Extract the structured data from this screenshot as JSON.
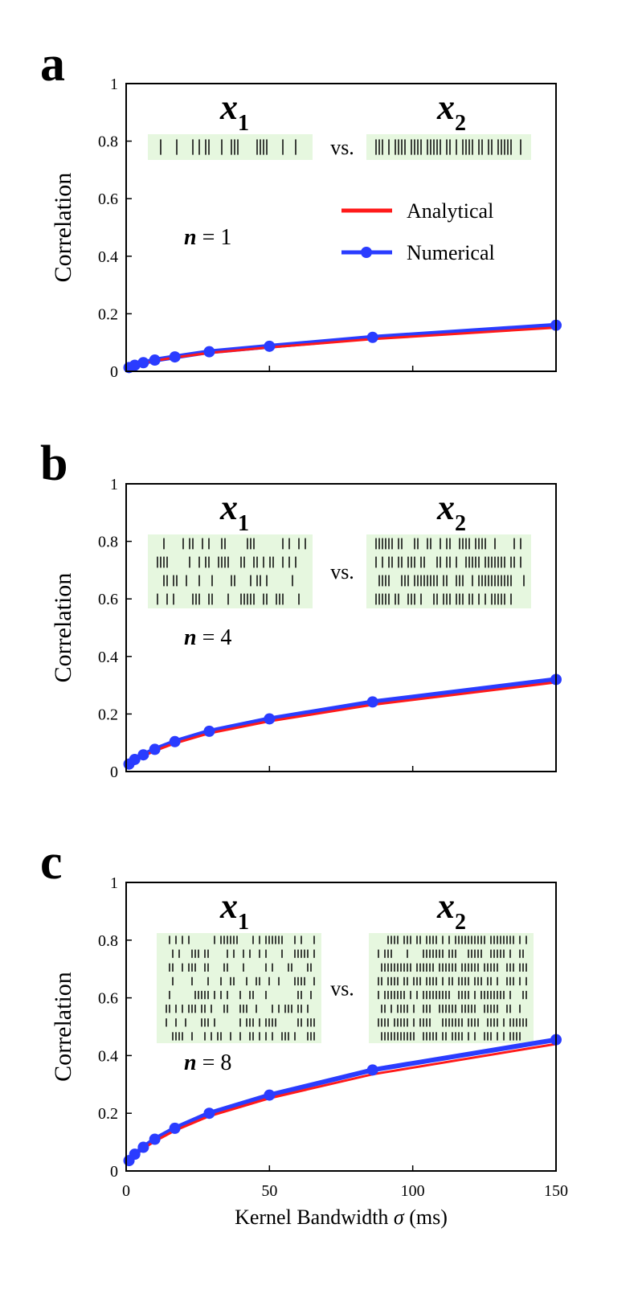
{
  "colors": {
    "analytical": "#ff1a1a",
    "numerical": "#2a3cff",
    "raster_bg": "#e6f7df",
    "axis": "#000000"
  },
  "legend": {
    "analytical_label": "Analytical",
    "numerical_label": "Numerical"
  },
  "chart_data": [
    {
      "panel": "a",
      "type": "line",
      "ylabel": "Correlation",
      "xlabel": "",
      "xlim": [
        0,
        150
      ],
      "ylim": [
        0,
        1
      ],
      "xticks": [
        0,
        50,
        100,
        150
      ],
      "yticks": [
        0,
        0.2,
        0.4,
        0.6,
        0.8,
        1
      ],
      "xtick_labels": [
        "",
        "",
        "",
        ""
      ],
      "ytick_labels": [
        "0",
        "0.2",
        "0.4",
        "0.6",
        "0.8",
        "1"
      ],
      "x1_label": "x",
      "x1_sub": "1",
      "x2_label": "x",
      "x2_sub": "2",
      "vs_label": "vs.",
      "n_var": "n",
      "n_text": " = 1",
      "n_rows": 1,
      "show_legend": true,
      "series": [
        {
          "name": "Analytical",
          "x": [
            1,
            3,
            6,
            10,
            17,
            29,
            50,
            86,
            150
          ],
          "y": [
            0.012,
            0.02,
            0.028,
            0.037,
            0.048,
            0.064,
            0.083,
            0.112,
            0.152
          ]
        },
        {
          "name": "Numerical",
          "x": [
            1,
            3,
            6,
            10,
            17,
            29,
            50,
            86,
            150
          ],
          "y": [
            0.013,
            0.021,
            0.03,
            0.039,
            0.05,
            0.068,
            0.087,
            0.118,
            0.16
          ]
        }
      ]
    },
    {
      "panel": "b",
      "type": "line",
      "ylabel": "Correlation",
      "xlabel": "",
      "xlim": [
        0,
        150
      ],
      "ylim": [
        0,
        1
      ],
      "xticks": [
        0,
        50,
        100,
        150
      ],
      "yticks": [
        0,
        0.2,
        0.4,
        0.6,
        0.8,
        1
      ],
      "xtick_labels": [
        "",
        "",
        "",
        ""
      ],
      "ytick_labels": [
        "0",
        "0.2",
        "0.4",
        "0.6",
        "0.8",
        "1"
      ],
      "x1_label": "x",
      "x1_sub": "1",
      "x2_label": "x",
      "x2_sub": "2",
      "vs_label": "vs.",
      "n_var": "n",
      "n_text": " = 4",
      "n_rows": 4,
      "show_legend": false,
      "series": [
        {
          "name": "Analytical",
          "x": [
            1,
            3,
            6,
            10,
            17,
            29,
            50,
            86,
            150
          ],
          "y": [
            0.025,
            0.04,
            0.054,
            0.072,
            0.098,
            0.133,
            0.175,
            0.232,
            0.31
          ]
        },
        {
          "name": "Numerical",
          "x": [
            1,
            3,
            6,
            10,
            17,
            29,
            50,
            86,
            150
          ],
          "y": [
            0.026,
            0.042,
            0.058,
            0.077,
            0.104,
            0.14,
            0.183,
            0.242,
            0.32
          ]
        }
      ]
    },
    {
      "panel": "c",
      "type": "line",
      "ylabel": "Correlation",
      "xlabel": "Kernel Bandwidth σ (ms)",
      "xlabel_main": "Kernel Bandwidth ",
      "xlabel_sym": "σ",
      "xlabel_unit": " (ms)",
      "xlim": [
        0,
        150
      ],
      "ylim": [
        0,
        1
      ],
      "xticks": [
        0,
        50,
        100,
        150
      ],
      "yticks": [
        0,
        0.2,
        0.4,
        0.6,
        0.8,
        1
      ],
      "xtick_labels": [
        "0",
        "50",
        "100",
        "150"
      ],
      "ytick_labels": [
        "0",
        "0.2",
        "0.4",
        "0.6",
        "0.8",
        "1"
      ],
      "x1_label": "x",
      "x1_sub": "1",
      "x2_label": "x",
      "x2_sub": "2",
      "vs_label": "vs.",
      "n_var": "n",
      "n_text": " = 8",
      "n_rows": 8,
      "show_legend": false,
      "series": [
        {
          "name": "Analytical",
          "x": [
            1,
            3,
            6,
            10,
            17,
            29,
            50,
            86,
            150
          ],
          "y": [
            0.035,
            0.056,
            0.078,
            0.103,
            0.14,
            0.19,
            0.252,
            0.335,
            0.44
          ]
        },
        {
          "name": "Numerical",
          "x": [
            1,
            3,
            6,
            10,
            17,
            29,
            50,
            86,
            150
          ],
          "y": [
            0.036,
            0.058,
            0.082,
            0.11,
            0.148,
            0.2,
            0.263,
            0.35,
            0.455
          ]
        }
      ]
    }
  ]
}
